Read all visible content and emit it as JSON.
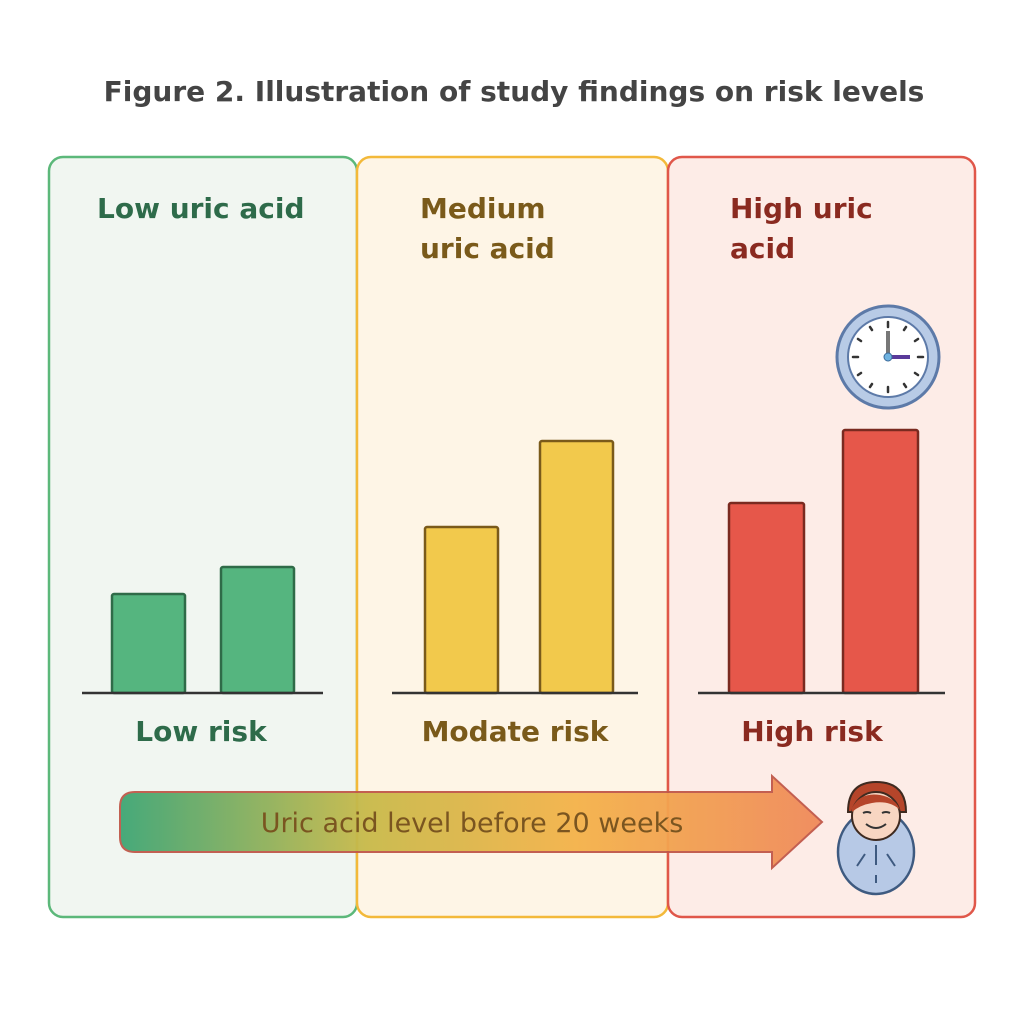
{
  "title": "Figure 2. Illustration of study findings on risk levels",
  "panels": [
    {
      "heading_lines": [
        "Low uric acid"
      ],
      "risk_label": "Low risk",
      "bars": [
        99,
        126
      ],
      "fill": "#f1f6f1",
      "border": "#5cb87a",
      "bar_color": "#55b57f",
      "bar_stroke": "#2f6b48",
      "text_color": "#2e6b4a"
    },
    {
      "heading_lines": [
        "Medium",
        "uric acid"
      ],
      "risk_label": "Modate risk",
      "bars": [
        166,
        252
      ],
      "fill": "#fef5e6",
      "border": "#f3b93a",
      "bar_color": "#f2c94c",
      "bar_stroke": "#7a5a1a",
      "text_color": "#7a5a1a"
    },
    {
      "heading_lines": [
        "High uric",
        "acid"
      ],
      "risk_label": "High risk",
      "bars": [
        190,
        263
      ],
      "fill": "#fdece7",
      "border": "#e0574a",
      "bar_color": "#e6574a",
      "bar_stroke": "#7a2a20",
      "text_color": "#8a2a20"
    }
  ],
  "arrow_label": "Uric acid level before 20 weeks",
  "icons": [
    "clock-icon",
    "baby-icon"
  ]
}
